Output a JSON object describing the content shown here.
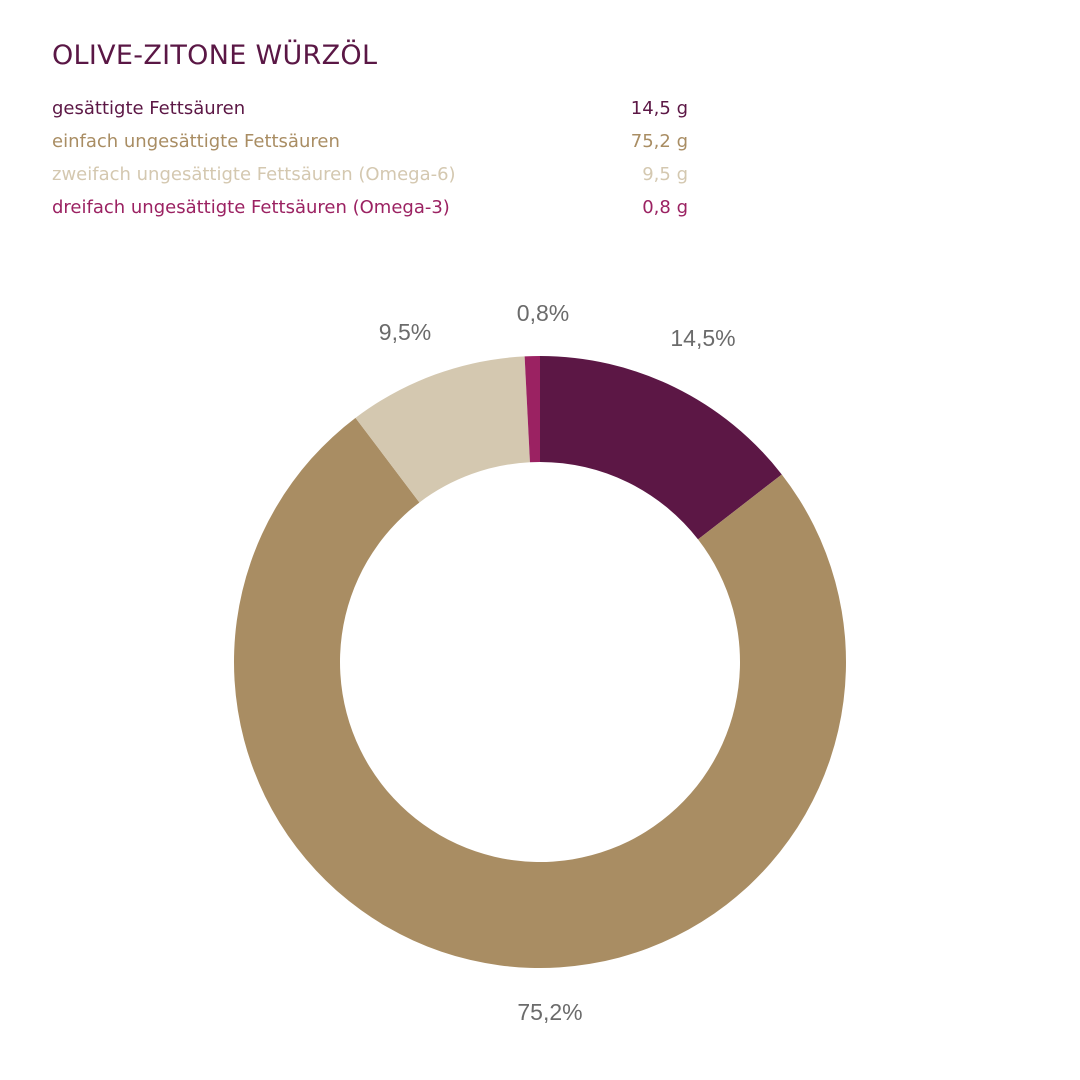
{
  "title": "OLIVE-ZITONE WÜRZÖL",
  "legend": [
    {
      "label": "gesättigte Fettsäuren",
      "value": "14,5 g",
      "color": "#5c1745"
    },
    {
      "label": "einfach ungesättigte Fettsäuren",
      "value": "75,2 g",
      "color": "#a98d63"
    },
    {
      "label": "zweifach ungesättigte Fettsäuren (Omega-6)",
      "value": "9,5 g",
      "color": "#d4c8b0"
    },
    {
      "label": "dreifach ungesättigte Fettsäuren (Omega-3)",
      "value": "0,8 g",
      "color": "#9b2262"
    }
  ],
  "labels": {
    "saturated": "14,5%",
    "mono": "75,2%",
    "omega6": "9,5%",
    "omega3": "0,8%"
  },
  "chart_data": {
    "type": "pie",
    "subtype": "donut",
    "title": "OLIVE-ZITONE WÜRZÖL",
    "categories": [
      "gesättigte Fettsäuren",
      "einfach ungesättigte Fettsäuren",
      "zweifach ungesättigte Fettsäuren (Omega-6)",
      "dreifach ungesättigte Fettsäuren (Omega-3)"
    ],
    "values": [
      14.5,
      75.2,
      9.5,
      0.8
    ],
    "units": "g",
    "percent_labels": [
      "14,5%",
      "75,2%",
      "9,5%",
      "0,8%"
    ],
    "colors": [
      "#5c1745",
      "#a98d63",
      "#d4c8b0",
      "#9b2262"
    ],
    "start_angle": "12 o'clock",
    "direction": "clockwise",
    "legend_position": "top-left"
  }
}
